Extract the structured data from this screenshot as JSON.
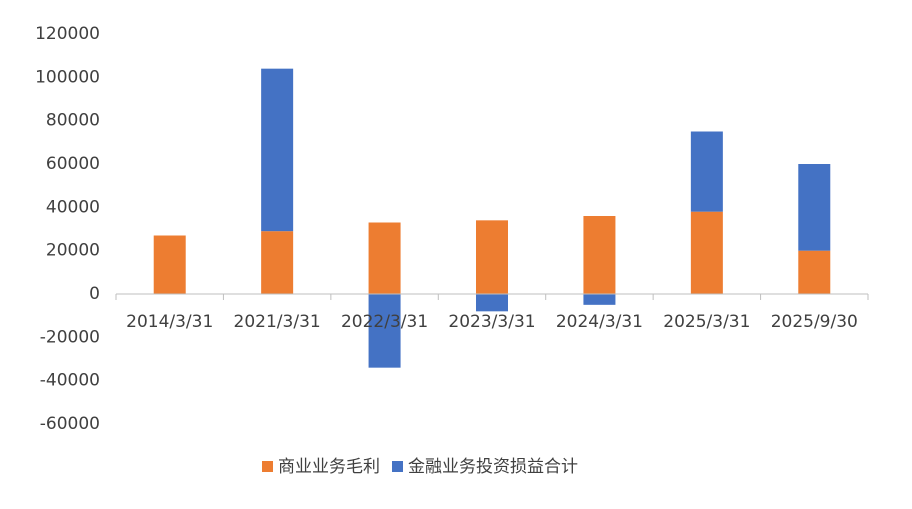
{
  "chart_data": {
    "type": "stacked_bar",
    "categories": [
      "2014/3/31",
      "2021/3/31",
      "2022/3/31",
      "2023/3/31",
      "2024/3/31",
      "2025/3/31",
      "2025/9/30"
    ],
    "series": [
      {
        "name": "商业业务毛利",
        "color": "#ED7D31",
        "values": [
          27000,
          29000,
          33000,
          34000,
          36000,
          38000,
          20000
        ]
      },
      {
        "name": "金融业务投资损益合计",
        "color": "#4472C4",
        "values": [
          0,
          75000,
          -34000,
          -8000,
          -5000,
          37000,
          40000
        ]
      }
    ],
    "ylim": [
      -60000,
      120000
    ],
    "yticks": [
      -60000,
      -40000,
      -20000,
      0,
      20000,
      40000,
      60000,
      80000,
      100000,
      120000
    ],
    "grid": false,
    "legend": "bottom"
  }
}
